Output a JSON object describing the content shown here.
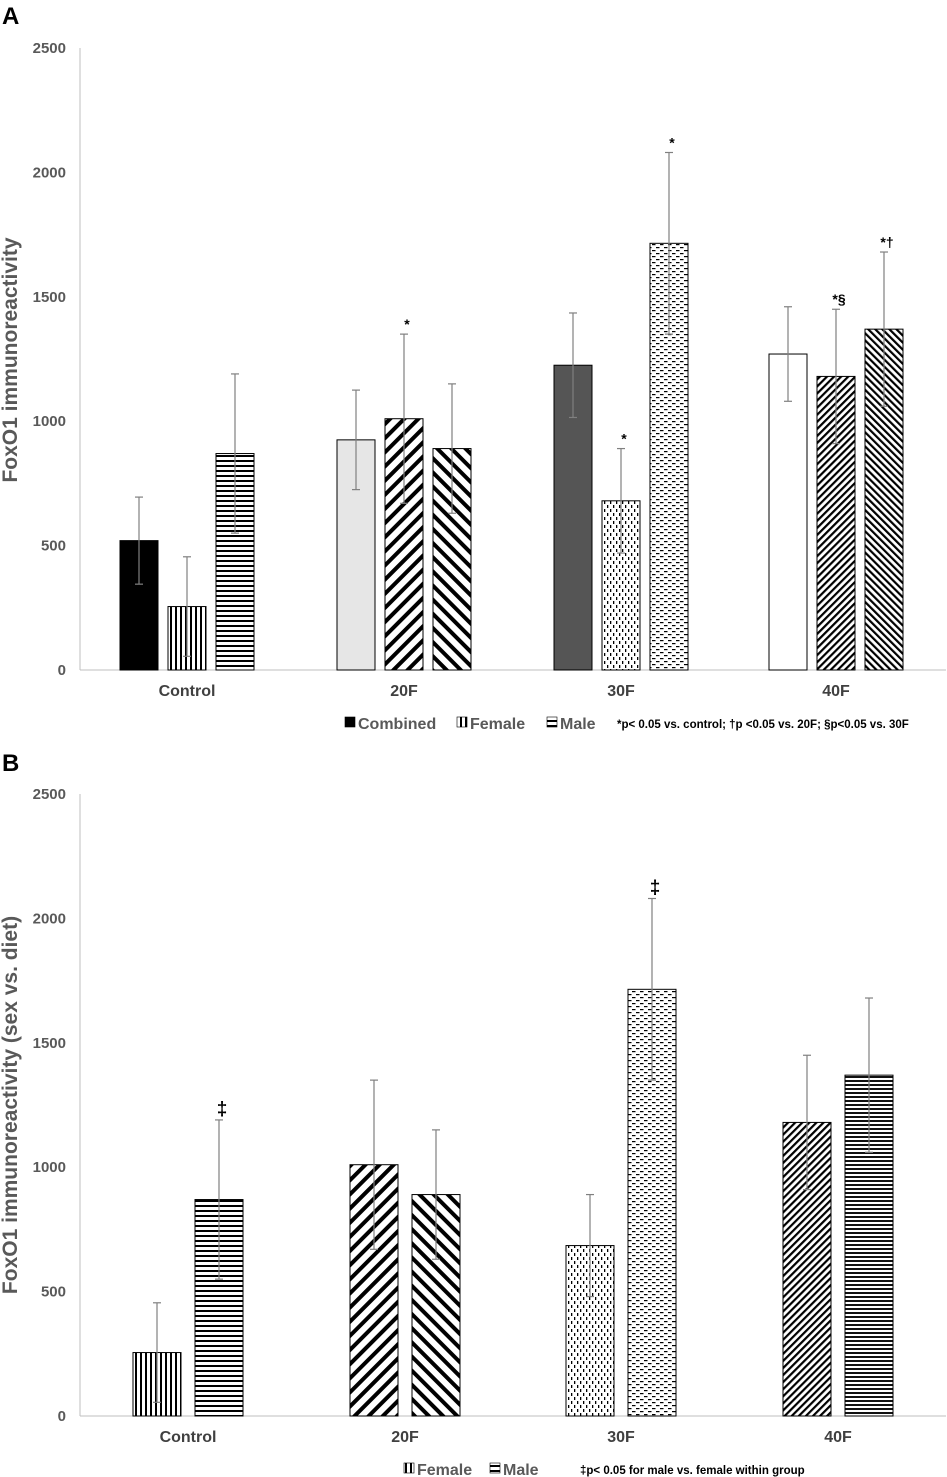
{
  "chart_data": [
    {
      "panel": "A",
      "type": "bar",
      "title": "",
      "xlabel": "",
      "ylabel": "FoxO1 immunoreactivity",
      "ylim": [
        0,
        2500
      ],
      "yticks": [
        0,
        500,
        1000,
        1500,
        2000,
        2500
      ],
      "grid": false,
      "legend_position": "bottom",
      "legend_note": "*p< 0.05 vs. control; †p <0.05 vs. 20F; §p<0.05 vs. 30F",
      "categories": [
        "Control",
        "20F",
        "30F",
        "40F"
      ],
      "series": [
        {
          "name": "Combined",
          "values": [
            520,
            925,
            1225,
            1270
          ],
          "errors": [
            175,
            200,
            210,
            190
          ],
          "fills": [
            "solid-black",
            "solid-lightgray",
            "solid-darkgray",
            "solid-white"
          ],
          "legend_fill": "solid-black"
        },
        {
          "name": "Female",
          "values": [
            255,
            1010,
            680,
            1180
          ],
          "errors": [
            200,
            340,
            210,
            270
          ],
          "fills": [
            "vlines",
            "diag-down",
            "dots",
            "diag-down-dense"
          ],
          "legend_fill": "vlines"
        },
        {
          "name": "Male",
          "values": [
            870,
            890,
            1715,
            1370
          ],
          "errors": [
            320,
            260,
            365,
            310
          ],
          "fills": [
            "hlines",
            "diag-up",
            "dashes",
            "diag-up-dense"
          ],
          "legend_fill": "hlines"
        }
      ],
      "annotations": [
        {
          "category": "20F",
          "series": "Female",
          "text": "*"
        },
        {
          "category": "30F",
          "series": "Female",
          "text": "*"
        },
        {
          "category": "30F",
          "series": "Male",
          "text": "*"
        },
        {
          "category": "40F",
          "series": "Female",
          "text": "*§"
        },
        {
          "category": "40F",
          "series": "Male",
          "text": "*†"
        }
      ]
    },
    {
      "panel": "B",
      "type": "bar",
      "title": "",
      "xlabel": "",
      "ylabel": "FoxO1 immunoreactivity (sex vs. diet)",
      "ylim": [
        0,
        2500
      ],
      "yticks": [
        0,
        500,
        1000,
        1500,
        2000,
        2500
      ],
      "grid": false,
      "legend_position": "bottom",
      "legend_note": "‡p< 0.05 for male vs. female within group",
      "categories": [
        "Control",
        "20F",
        "30F",
        "40F"
      ],
      "series": [
        {
          "name": "Female",
          "values": [
            255,
            1010,
            685,
            1180
          ],
          "errors": [
            200,
            340,
            205,
            270
          ],
          "fills": [
            "vlines",
            "diag-down",
            "dots",
            "diag-down-dense"
          ],
          "legend_fill": "vlines"
        },
        {
          "name": "Male",
          "values": [
            870,
            890,
            1715,
            1370
          ],
          "errors": [
            320,
            260,
            365,
            310
          ],
          "fills": [
            "hlines",
            "diag-up",
            "dashes",
            "hlines-dense"
          ],
          "legend_fill": "hlines"
        }
      ],
      "annotations": [
        {
          "category": "Control",
          "series": "Male",
          "text": "‡"
        },
        {
          "category": "30F",
          "series": "Male",
          "text": "‡"
        }
      ]
    }
  ],
  "colors": {
    "axis": "#bfbfbf",
    "error_bar": "#808080",
    "bar_stroke": "#000000",
    "combined_control": "#000000",
    "combined_20F": "#e6e6e6",
    "combined_30F": "#555555",
    "combined_40F": "#ffffff"
  }
}
